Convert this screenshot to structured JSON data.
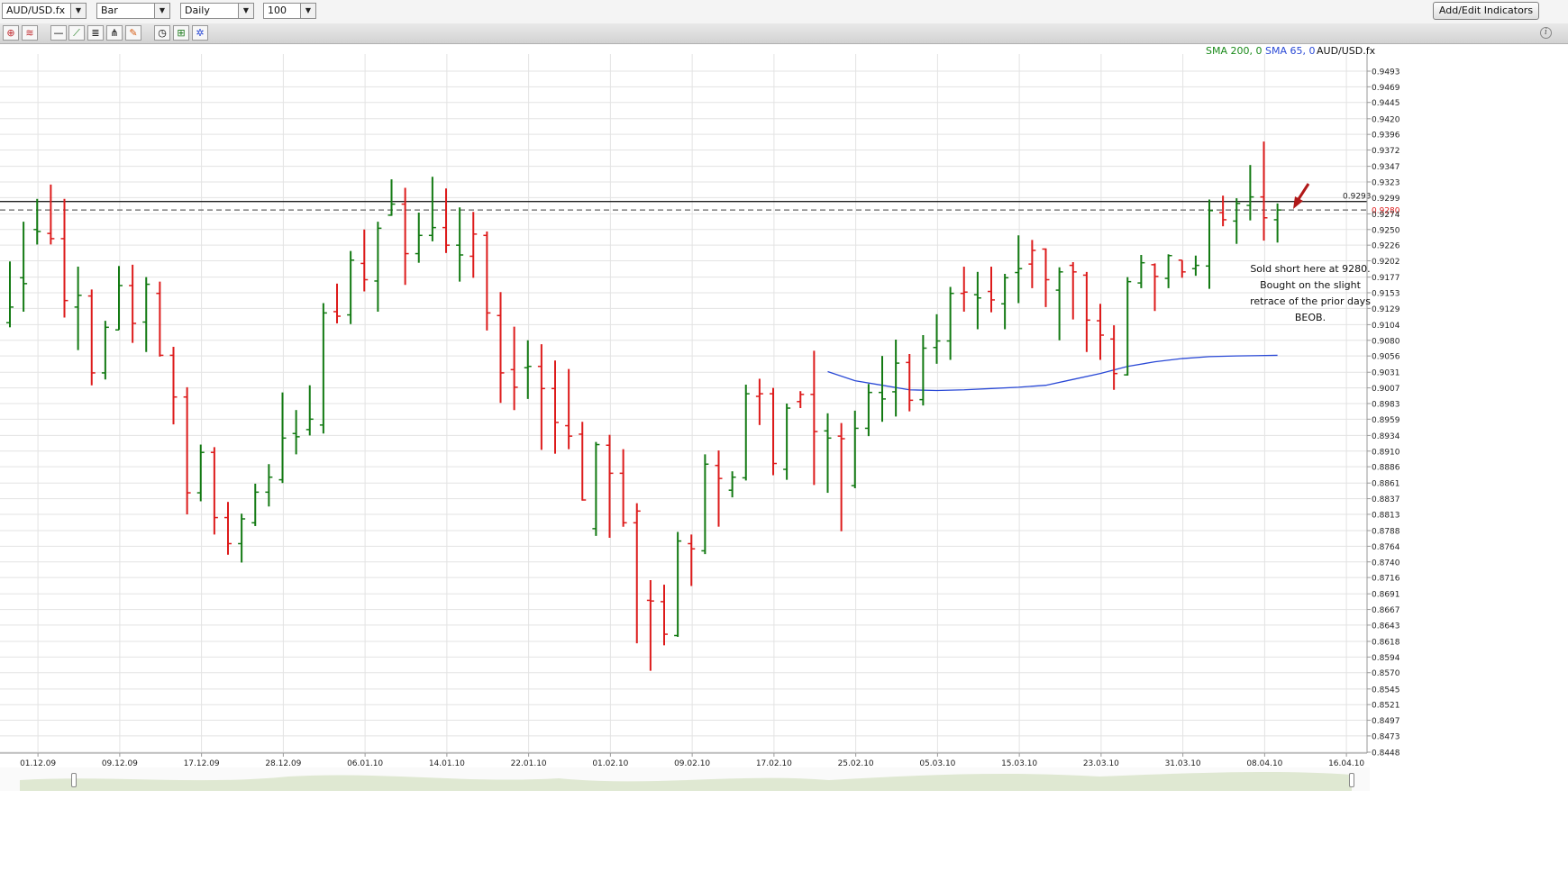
{
  "toolbar": {
    "symbol": "AUD/USD.fx",
    "chart_type": "Bar",
    "period": "Daily",
    "bars": "100",
    "add_indicators_label": "Add/Edit Indicators"
  },
  "icons": [
    "crosshair-icon",
    "chart-style-icon",
    "horizontal-line-icon",
    "trend-line-icon",
    "fibonacci-icon",
    "pitchfork-icon",
    "eraser-icon",
    "clock-icon",
    "zoom-icon",
    "settings-icon",
    "info-icon"
  ],
  "legend": {
    "sma200": "SMA 200, 0",
    "sma65": "SMA 65, 0",
    "symbol": "AUD/USD.fx",
    "sma200_color": "#1a8a1a",
    "sma65_color": "#2a49d6"
  },
  "annotation": {
    "lines": [
      "Sold short here at 9280.",
      "Bought on the slight",
      "retrace of the prior days",
      "BEOB."
    ]
  },
  "chart_data": {
    "type": "ohlc",
    "y_ticks": [
      "0.9493",
      "0.9469",
      "0.9445",
      "0.9420",
      "0.9396",
      "0.9372",
      "0.9347",
      "0.9323",
      "0.9299",
      "0.9274",
      "0.9250",
      "0.9226",
      "0.9202",
      "0.9177",
      "0.9153",
      "0.9129",
      "0.9104",
      "0.9080",
      "0.9056",
      "0.9031",
      "0.9007",
      "0.8983",
      "0.8959",
      "0.8934",
      "0.8910",
      "0.8886",
      "0.8861",
      "0.8837",
      "0.8813",
      "0.8788",
      "0.8764",
      "0.8740",
      "0.8716",
      "0.8691",
      "0.8667",
      "0.8643",
      "0.8618",
      "0.8594",
      "0.8570",
      "0.8545",
      "0.8521",
      "0.8497",
      "0.8473",
      "0.8448"
    ],
    "ylim": [
      0.8448,
      0.9493
    ],
    "x_ticks": [
      {
        "label": "01.12.09",
        "index": 1
      },
      {
        "label": "09.12.09",
        "index": 7
      },
      {
        "label": "17.12.09",
        "index": 13
      },
      {
        "label": "28.12.09",
        "index": 19
      },
      {
        "label": "06.01.10",
        "index": 25
      },
      {
        "label": "14.01.10",
        "index": 31
      },
      {
        "label": "22.01.10",
        "index": 37
      },
      {
        "label": "01.02.10",
        "index": 43
      },
      {
        "label": "09.02.10",
        "index": 49
      },
      {
        "label": "17.02.10",
        "index": 55
      },
      {
        "label": "25.02.10",
        "index": 61
      },
      {
        "label": "05.03.10",
        "index": 67
      },
      {
        "label": "15.03.10",
        "index": 73
      },
      {
        "label": "23.03.10",
        "index": 79
      },
      {
        "label": "31.03.10",
        "index": 85
      },
      {
        "label": "08.04.10",
        "index": 91
      },
      {
        "label": "16.04.10",
        "index": 97
      }
    ],
    "up_color": "#137a13",
    "down_color": "#dd1b1b",
    "bars": [
      [
        0.9107,
        0.9201,
        0.91,
        0.9131,
        "up"
      ],
      [
        0.9176,
        0.9262,
        0.9124,
        0.9167,
        "up"
      ],
      [
        0.925,
        0.9297,
        0.9227,
        0.9247,
        "up"
      ],
      [
        0.9244,
        0.9319,
        0.9227,
        0.9236,
        "down"
      ],
      [
        0.9236,
        0.9297,
        0.9115,
        0.9141,
        "down"
      ],
      [
        0.9131,
        0.9193,
        0.9065,
        0.9149,
        "up"
      ],
      [
        0.9148,
        0.9158,
        0.9011,
        0.903,
        "down"
      ],
      [
        0.903,
        0.911,
        0.902,
        0.91,
        "up"
      ],
      [
        0.9096,
        0.9194,
        0.9096,
        0.9164,
        "up"
      ],
      [
        0.9164,
        0.9196,
        0.9076,
        0.9106,
        "down"
      ],
      [
        0.9108,
        0.9177,
        0.9062,
        0.9166,
        "up"
      ],
      [
        0.9152,
        0.917,
        0.9055,
        0.9057,
        "down"
      ],
      [
        0.9057,
        0.907,
        0.8951,
        0.8993,
        "down"
      ],
      [
        0.8993,
        0.9008,
        0.8813,
        0.8846,
        "down"
      ],
      [
        0.8846,
        0.892,
        0.8833,
        0.8908,
        "up"
      ],
      [
        0.8908,
        0.8916,
        0.8782,
        0.8808,
        "down"
      ],
      [
        0.8808,
        0.8832,
        0.8751,
        0.8768,
        "down"
      ],
      [
        0.8768,
        0.8814,
        0.8739,
        0.8806,
        "up"
      ],
      [
        0.88,
        0.886,
        0.8795,
        0.8847,
        "up"
      ],
      [
        0.8847,
        0.889,
        0.8825,
        0.887,
        "up"
      ],
      [
        0.8866,
        0.9,
        0.8861,
        0.893,
        "up"
      ],
      [
        0.8937,
        0.8973,
        0.8905,
        0.8932,
        "up"
      ],
      [
        0.8943,
        0.9011,
        0.8934,
        0.8959,
        "up"
      ],
      [
        0.895,
        0.9137,
        0.8937,
        0.9122,
        "up"
      ],
      [
        0.9124,
        0.9167,
        0.9106,
        0.9117,
        "down"
      ],
      [
        0.9119,
        0.9217,
        0.9105,
        0.9203,
        "up"
      ],
      [
        0.9198,
        0.925,
        0.9155,
        0.9173,
        "down"
      ],
      [
        0.9171,
        0.9262,
        0.9124,
        0.9252,
        "up"
      ],
      [
        0.9272,
        0.9327,
        0.9271,
        0.9289,
        "up"
      ],
      [
        0.9289,
        0.9314,
        0.9165,
        0.9213,
        "down"
      ],
      [
        0.9213,
        0.9276,
        0.9199,
        0.9241,
        "up"
      ],
      [
        0.9241,
        0.9331,
        0.9232,
        0.9253,
        "up"
      ],
      [
        0.9253,
        0.9313,
        0.9214,
        0.9226,
        "down"
      ],
      [
        0.9226,
        0.9284,
        0.917,
        0.9211,
        "up"
      ],
      [
        0.9209,
        0.9277,
        0.9176,
        0.9243,
        "down"
      ],
      [
        0.9241,
        0.9247,
        0.9095,
        0.9122,
        "down"
      ],
      [
        0.9118,
        0.9154,
        0.8984,
        0.903,
        "down"
      ],
      [
        0.9035,
        0.9101,
        0.8973,
        0.9008,
        "down"
      ],
      [
        0.9038,
        0.908,
        0.899,
        0.904,
        "up"
      ],
      [
        0.904,
        0.9074,
        0.8912,
        0.9006,
        "down"
      ],
      [
        0.9006,
        0.9049,
        0.8906,
        0.8954,
        "down"
      ],
      [
        0.8949,
        0.9036,
        0.8913,
        0.8933,
        "down"
      ],
      [
        0.8936,
        0.8955,
        0.8834,
        0.8835,
        "down"
      ],
      [
        0.8791,
        0.8924,
        0.878,
        0.892,
        "up"
      ],
      [
        0.8919,
        0.8935,
        0.8777,
        0.8876,
        "down"
      ],
      [
        0.8876,
        0.8913,
        0.8794,
        0.88,
        "down"
      ],
      [
        0.88,
        0.883,
        0.8615,
        0.8818,
        "down"
      ],
      [
        0.8681,
        0.8712,
        0.8573,
        0.868,
        "down"
      ],
      [
        0.8679,
        0.8705,
        0.8612,
        0.8629,
        "down"
      ],
      [
        0.8627,
        0.8786,
        0.8625,
        0.8772,
        "up"
      ],
      [
        0.8768,
        0.8782,
        0.8703,
        0.876,
        "down"
      ],
      [
        0.8757,
        0.8905,
        0.8752,
        0.889,
        "up"
      ],
      [
        0.8888,
        0.8911,
        0.8794,
        0.8868,
        "down"
      ],
      [
        0.885,
        0.8879,
        0.8839,
        0.887,
        "up"
      ],
      [
        0.8869,
        0.9012,
        0.8865,
        0.8998,
        "up"
      ],
      [
        0.8994,
        0.9021,
        0.895,
        0.8998,
        "down"
      ],
      [
        0.8998,
        0.9007,
        0.8873,
        0.8891,
        "down"
      ],
      [
        0.8882,
        0.8983,
        0.8866,
        0.8976,
        "up"
      ],
      [
        0.8986,
        0.9002,
        0.8976,
        0.8997,
        "down"
      ],
      [
        0.8997,
        0.9064,
        0.8858,
        0.894,
        "down"
      ],
      [
        0.8941,
        0.8968,
        0.8846,
        0.893,
        "up"
      ],
      [
        0.8933,
        0.8953,
        0.8787,
        0.8929,
        "down"
      ],
      [
        0.8857,
        0.8972,
        0.8853,
        0.8945,
        "up"
      ],
      [
        0.8945,
        0.9013,
        0.8933,
        0.9,
        "up"
      ],
      [
        0.9,
        0.9056,
        0.8955,
        0.899,
        "up"
      ],
      [
        0.9001,
        0.9081,
        0.8963,
        0.9045,
        "up"
      ],
      [
        0.9046,
        0.9059,
        0.8971,
        0.8988,
        "down"
      ],
      [
        0.8989,
        0.9088,
        0.898,
        0.9068,
        "up"
      ],
      [
        0.9069,
        0.912,
        0.9044,
        0.9079,
        "up"
      ],
      [
        0.9079,
        0.9162,
        0.905,
        0.9152,
        "up"
      ],
      [
        0.9152,
        0.9193,
        0.9124,
        0.9154,
        "down"
      ],
      [
        0.915,
        0.9185,
        0.9097,
        0.9145,
        "up"
      ],
      [
        0.9155,
        0.9193,
        0.9123,
        0.9142,
        "down"
      ],
      [
        0.9136,
        0.9182,
        0.9097,
        0.9176,
        "up"
      ],
      [
        0.9184,
        0.9241,
        0.9137,
        0.919,
        "up"
      ],
      [
        0.9197,
        0.9234,
        0.916,
        0.9218,
        "down"
      ],
      [
        0.922,
        0.9221,
        0.9131,
        0.9173,
        "down"
      ],
      [
        0.9157,
        0.9192,
        0.908,
        0.9185,
        "up"
      ],
      [
        0.9195,
        0.92,
        0.9112,
        0.9185,
        "down"
      ],
      [
        0.918,
        0.9185,
        0.9062,
        0.9111,
        "down"
      ],
      [
        0.911,
        0.9136,
        0.905,
        0.9088,
        "down"
      ],
      [
        0.9082,
        0.9103,
        0.9004,
        0.9029,
        "down"
      ],
      [
        0.9027,
        0.9177,
        0.9026,
        0.917,
        "up"
      ],
      [
        0.9168,
        0.9211,
        0.916,
        0.9199,
        "up"
      ],
      [
        0.9196,
        0.9198,
        0.9125,
        0.9178,
        "down"
      ],
      [
        0.9175,
        0.9212,
        0.916,
        0.921,
        "up"
      ],
      [
        0.9203,
        0.9203,
        0.9176,
        0.9185,
        "down"
      ],
      [
        0.919,
        0.921,
        0.9179,
        0.9195,
        "up"
      ],
      [
        0.9194,
        0.9296,
        0.9159,
        0.9279,
        "up"
      ],
      [
        0.9276,
        0.9302,
        0.9255,
        0.9265,
        "down"
      ],
      [
        0.9263,
        0.9298,
        0.9228,
        0.929,
        "up"
      ],
      [
        0.9287,
        0.9349,
        0.9264,
        0.93,
        "up"
      ],
      [
        0.93,
        0.9385,
        0.9233,
        0.9268,
        "down"
      ],
      [
        0.9265,
        0.929,
        0.923,
        0.928,
        "up"
      ]
    ],
    "sma65": [
      {
        "index": 60,
        "value": 0.9032
      },
      {
        "index": 62,
        "value": 0.9018
      },
      {
        "index": 64,
        "value": 0.9011
      },
      {
        "index": 66,
        "value": 0.9004
      },
      {
        "index": 68,
        "value": 0.9003
      },
      {
        "index": 70,
        "value": 0.9004
      },
      {
        "index": 72,
        "value": 0.9006
      },
      {
        "index": 74,
        "value": 0.9008
      },
      {
        "index": 76,
        "value": 0.9011
      },
      {
        "index": 78,
        "value": 0.902
      },
      {
        "index": 80,
        "value": 0.9029
      },
      {
        "index": 82,
        "value": 0.904
      },
      {
        "index": 84,
        "value": 0.9047
      },
      {
        "index": 86,
        "value": 0.9052
      },
      {
        "index": 88,
        "value": 0.9055
      },
      {
        "index": 90,
        "value": 0.9056
      },
      {
        "index": 93,
        "value": 0.9057
      }
    ],
    "hlines": [
      {
        "value": 0.9293,
        "label": "0.9293",
        "style": "solid",
        "color": "#222222"
      },
      {
        "value": 0.928,
        "label": "0.9280",
        "style": "dashed",
        "color": "#dd1b1b"
      }
    ]
  }
}
